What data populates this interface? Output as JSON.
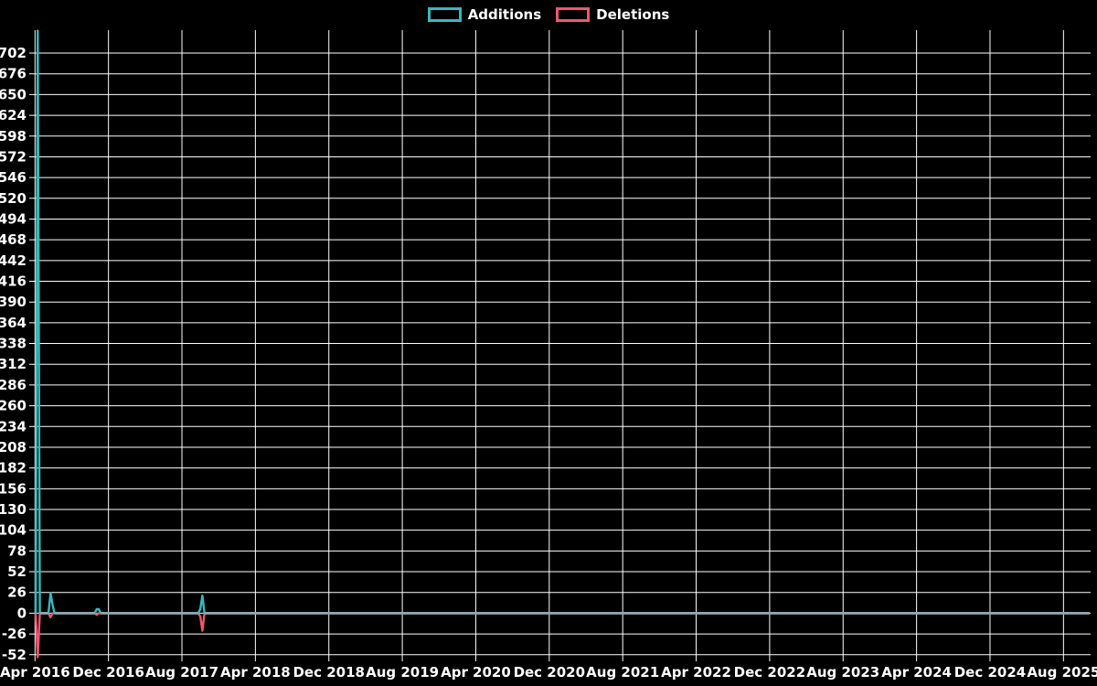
{
  "legend": {
    "items": [
      {
        "label": "Additions",
        "color": "#3ab7bc"
      },
      {
        "label": "Deletions",
        "color": "#ef566f"
      }
    ]
  },
  "chart_data": {
    "type": "line",
    "title": "",
    "xlabel": "",
    "ylabel": "",
    "background_color": "#000000",
    "grid": true,
    "grid_color": "#ffffff",
    "text_color": "#ffffff",
    "zero_overlap_color": "#8ea9b4",
    "legend_position": "top-center",
    "x_axis": {
      "tick_interval_months": 8,
      "tick_labels": [
        "Apr 2016",
        "Dec 2016",
        "Aug 2017",
        "Apr 2018",
        "Dec 2018",
        "Aug 2019",
        "Apr 2020",
        "Dec 2020",
        "Aug 2021",
        "Apr 2022",
        "Dec 2022",
        "Aug 2023",
        "Apr 2024",
        "Dec 2024",
        "Aug 2025"
      ]
    },
    "y_axis": {
      "tick_step": 26,
      "tick_labels": [
        702,
        676,
        650,
        624,
        598,
        572,
        546,
        520,
        494,
        468,
        442,
        416,
        390,
        364,
        338,
        312,
        286,
        260,
        234,
        208,
        182,
        156,
        130,
        104,
        78,
        52,
        26,
        0,
        -26,
        -52
      ],
      "range_estimate": [
        -55,
        730
      ]
    },
    "series": [
      {
        "name": "Additions",
        "color": "#3ab7bc",
        "points": [
          [
            "2016-04-03",
            0
          ],
          [
            "2016-04-10",
            730
          ],
          [
            "2016-04-17",
            0
          ],
          [
            "2016-05-15",
            0
          ],
          [
            "2016-05-22",
            25
          ],
          [
            "2016-05-29",
            10
          ],
          [
            "2016-06-05",
            0
          ],
          [
            "2016-10-16",
            0
          ],
          [
            "2016-10-23",
            5
          ],
          [
            "2016-10-30",
            5
          ],
          [
            "2016-11-06",
            0
          ],
          [
            "2017-09-24",
            0
          ],
          [
            "2017-10-01",
            5
          ],
          [
            "2017-10-08",
            22
          ],
          [
            "2017-10-15",
            0
          ],
          [
            "2025-10-26",
            0
          ]
        ]
      },
      {
        "name": "Deletions",
        "color": "#ef566f",
        "points": [
          [
            "2016-04-03",
            0
          ],
          [
            "2016-04-10",
            -55
          ],
          [
            "2016-04-17",
            0
          ],
          [
            "2016-05-15",
            0
          ],
          [
            "2016-05-22",
            -5
          ],
          [
            "2016-05-29",
            0
          ],
          [
            "2016-10-16",
            0
          ],
          [
            "2016-10-23",
            -2
          ],
          [
            "2016-10-30",
            0
          ],
          [
            "2017-09-24",
            0
          ],
          [
            "2017-10-01",
            -4
          ],
          [
            "2017-10-08",
            -22
          ],
          [
            "2017-10-15",
            0
          ],
          [
            "2025-10-26",
            0
          ]
        ]
      }
    ]
  }
}
